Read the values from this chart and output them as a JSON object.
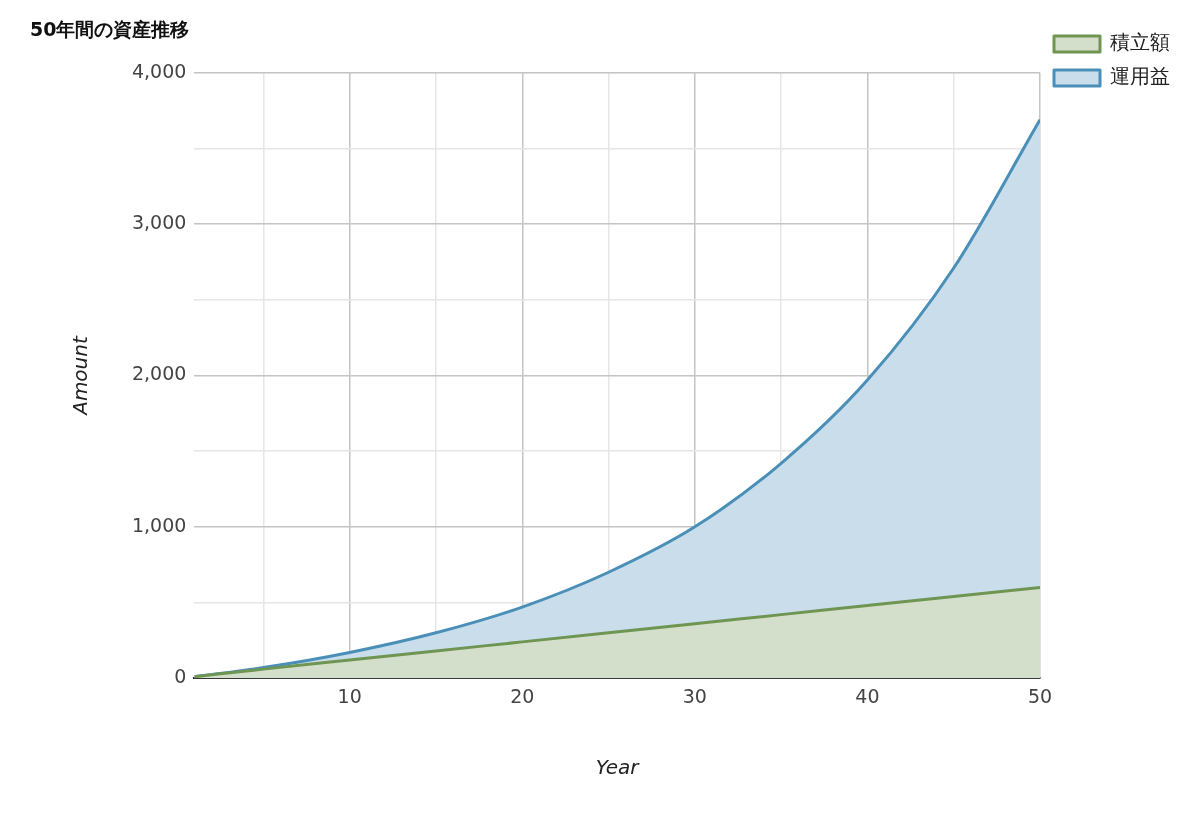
{
  "chart_data": {
    "type": "area",
    "title": "50年間の資産推移",
    "xlabel": "Year",
    "ylabel": "Amount",
    "x": [
      1,
      5,
      10,
      15,
      20,
      25,
      30,
      35,
      40,
      45,
      50
    ],
    "series": [
      {
        "name": "運用益",
        "color": "#4a8fb8",
        "values": [
          10,
          70,
          170,
          300,
          470,
          700,
          1000,
          1420,
          1970,
          2710,
          3690
        ]
      },
      {
        "name": "積立額",
        "color": "#6f9553",
        "values": [
          10,
          60,
          120,
          180,
          240,
          300,
          360,
          420,
          480,
          540,
          600
        ]
      }
    ],
    "xlim": [
      1,
      50
    ],
    "xticks": [
      {
        "value": 5,
        "label": null
      },
      10,
      {
        "value": 15,
        "label": null
      },
      20,
      {
        "value": 25,
        "label": null
      },
      30,
      {
        "value": 35,
        "label": null
      },
      40,
      {
        "value": 45,
        "label": null
      },
      50
    ],
    "ylim": [
      0,
      4000
    ],
    "yticks": [
      0,
      {
        "value": 500,
        "label": null
      },
      {
        "value": 1000,
        "label": "1,000"
      },
      {
        "value": 1500,
        "label": null
      },
      {
        "value": 2000,
        "label": "2,000"
      },
      {
        "value": 2500,
        "label": null
      },
      {
        "value": 3000,
        "label": "3,000"
      },
      {
        "value": 3500,
        "label": null
      },
      {
        "value": 4000,
        "label": "4,000"
      }
    ],
    "grid": true,
    "legend": "top right",
    "marker": "none",
    "line_style": "solid"
  }
}
